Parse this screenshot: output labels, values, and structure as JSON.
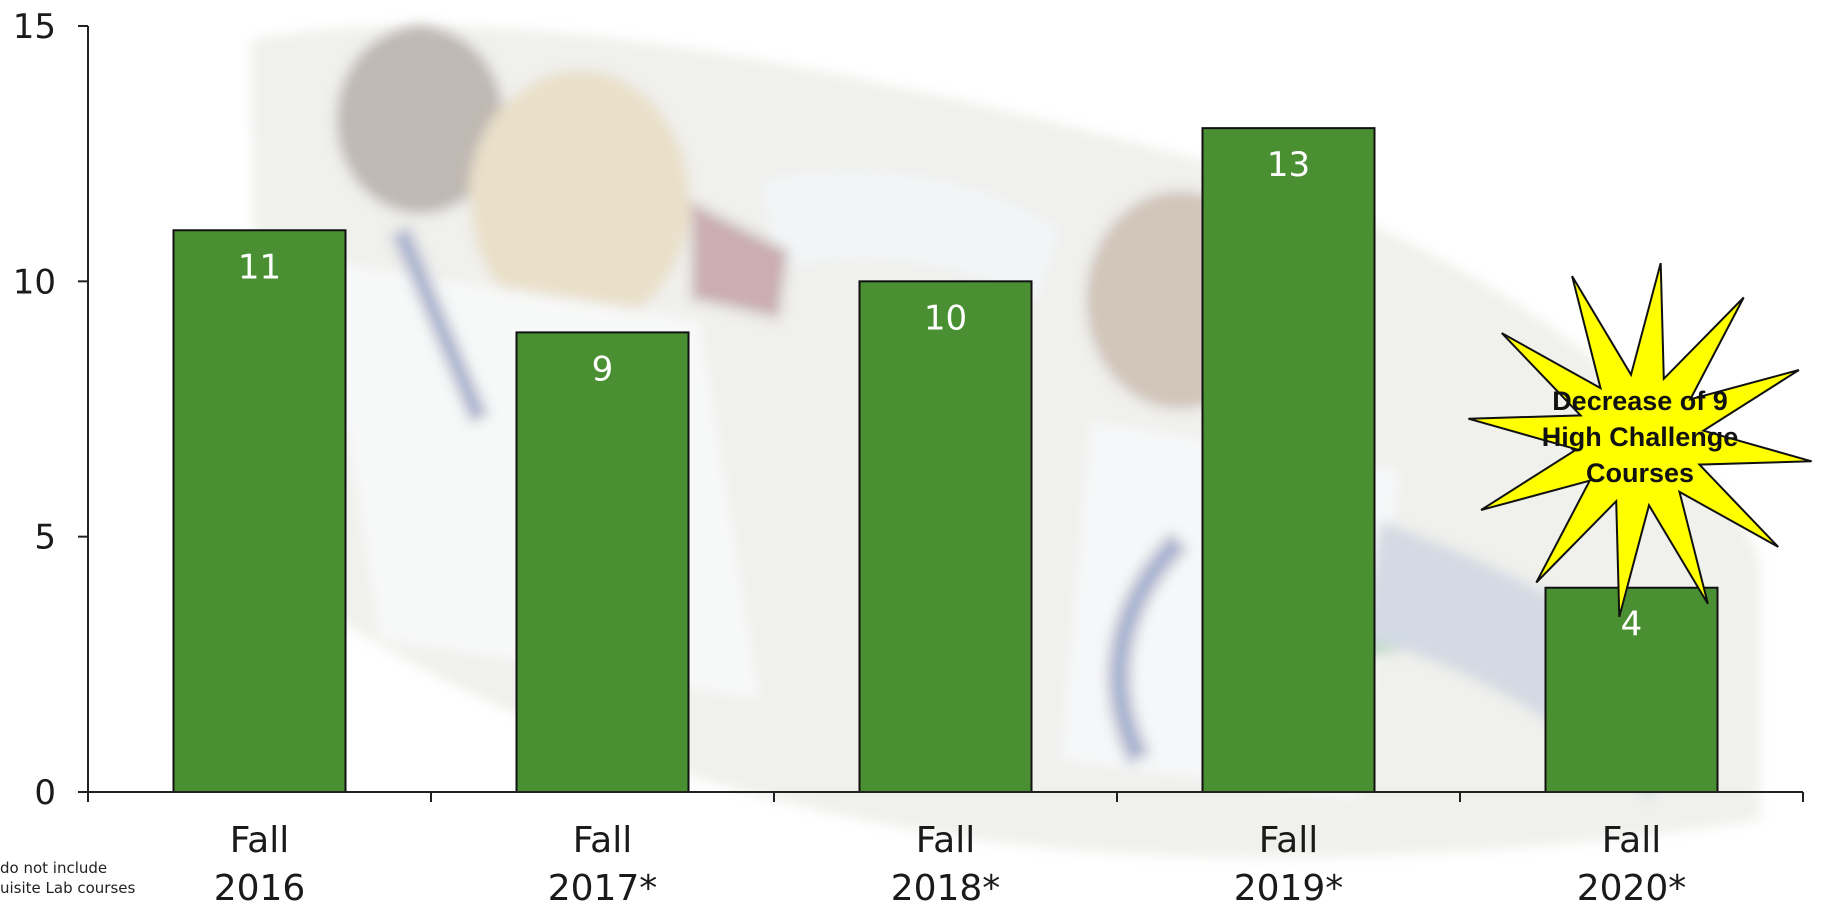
{
  "chart_data": {
    "type": "bar",
    "categories": [
      [
        "Fall",
        "2016"
      ],
      [
        "Fall",
        "2017*"
      ],
      [
        "Fall",
        "2018*"
      ],
      [
        "Fall",
        "2019*"
      ],
      [
        "Fall",
        "2020*"
      ]
    ],
    "values": [
      11,
      9,
      10,
      13,
      4
    ],
    "data_labels": [
      "11",
      "9",
      "10",
      "13",
      "4"
    ],
    "ylim": [
      0,
      15
    ],
    "y_ticks": [
      0,
      5,
      10,
      15
    ],
    "y_tick_labels": [
      "0",
      "5",
      "10",
      "15"
    ],
    "bar_color": "#4a8f32",
    "grid": false,
    "legend": "none",
    "annotation": {
      "shape": "starburst",
      "fill": "#ffff00",
      "lines": [
        "Decrease of 9",
        "High Challenge",
        "Courses"
      ]
    }
  },
  "footnote": "do not include\nuisite Lab courses"
}
